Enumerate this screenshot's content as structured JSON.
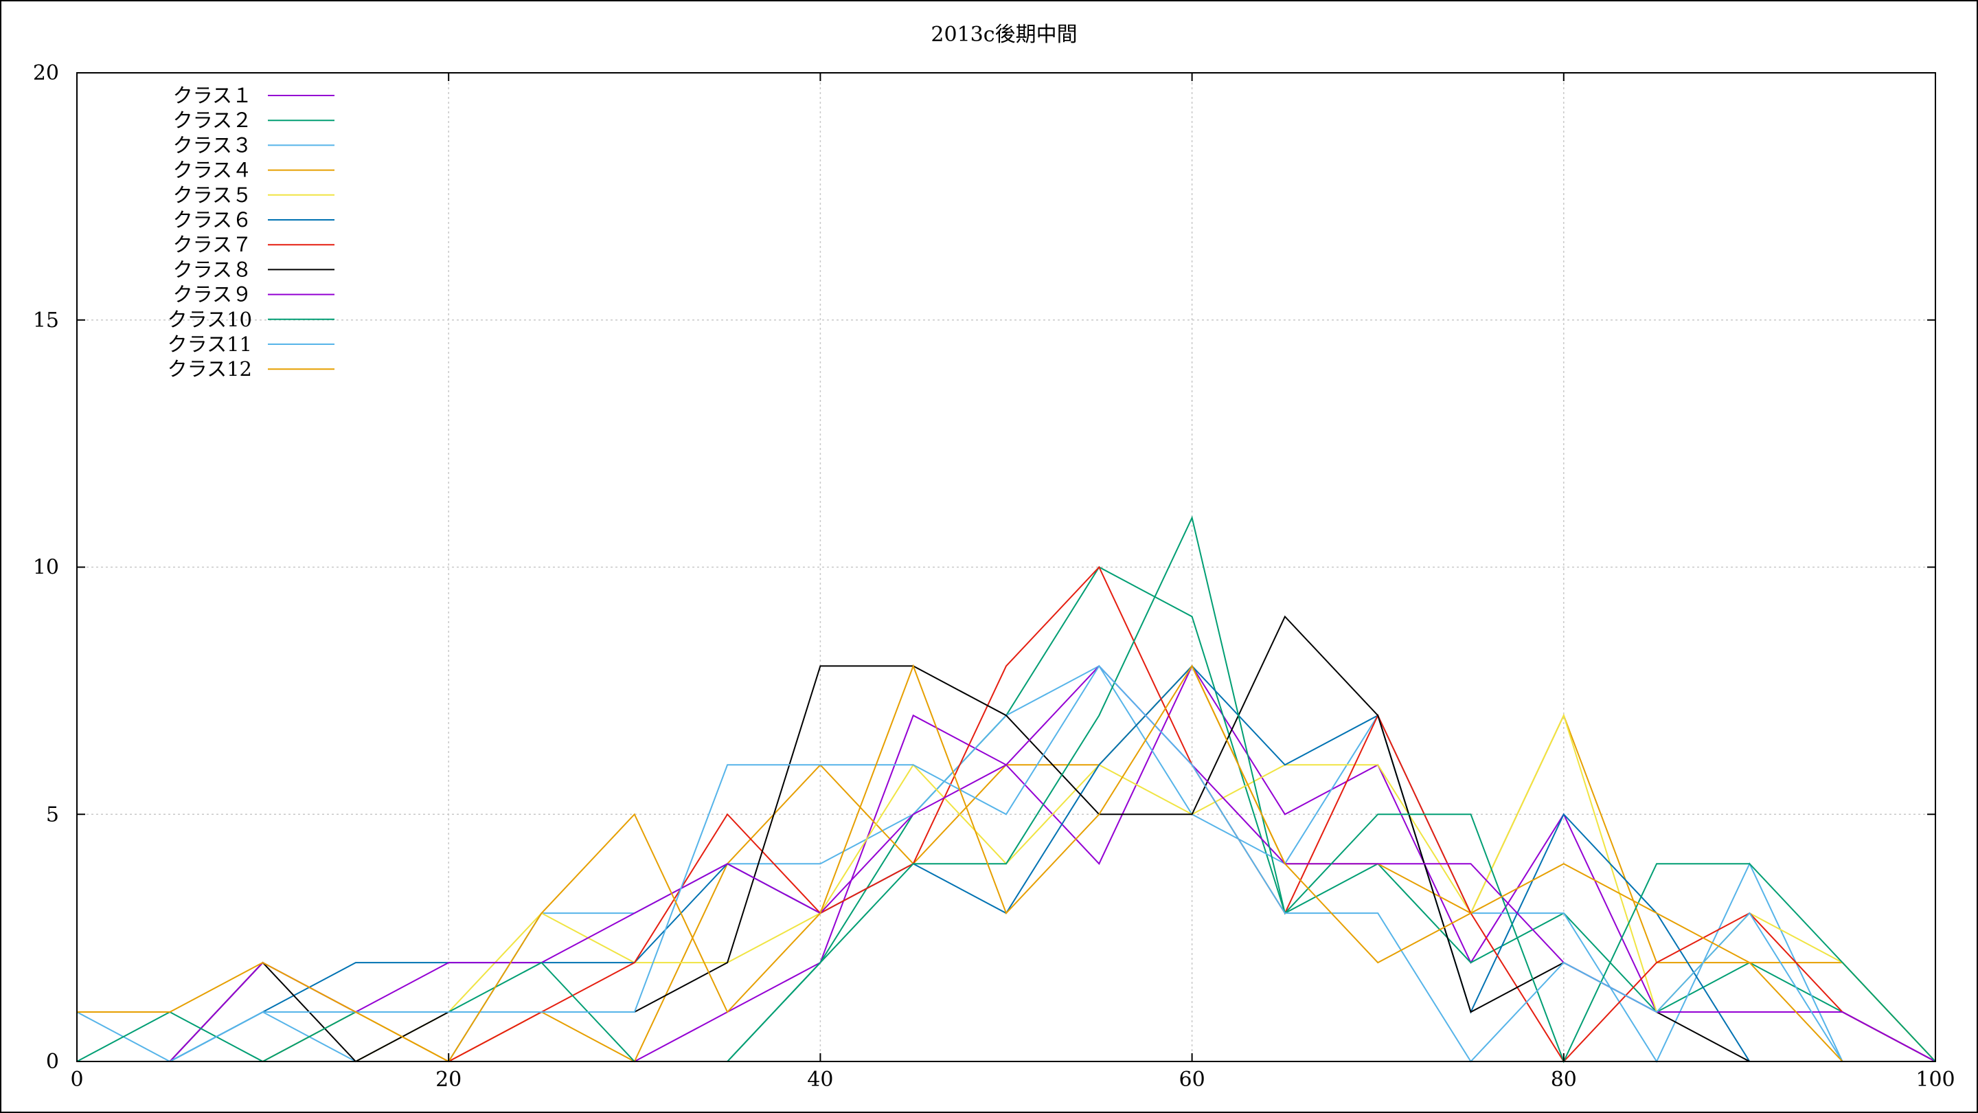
{
  "chart_data": {
    "type": "line",
    "title": "2013c後期中間",
    "xlabel": "",
    "ylabel": "",
    "xlim": [
      0,
      100
    ],
    "ylim": [
      0,
      20
    ],
    "xticks": [
      0,
      20,
      40,
      60,
      80,
      100
    ],
    "yticks": [
      0,
      5,
      10,
      15,
      20
    ],
    "grid": true,
    "legend_position": "top-left",
    "x": [
      0,
      5,
      10,
      15,
      20,
      25,
      30,
      35,
      40,
      45,
      50,
      55,
      60,
      65,
      70,
      75,
      80,
      85,
      90,
      95,
      100
    ],
    "series": [
      {
        "name": "クラス１",
        "color": "#9400d3",
        "values": [
          0,
          0,
          0,
          0,
          0,
          0,
          0,
          1,
          2,
          7,
          6,
          4,
          8,
          5,
          6,
          2,
          5,
          1,
          1,
          1,
          0
        ]
      },
      {
        "name": "クラス２",
        "color": "#009e73",
        "values": [
          0,
          0,
          0,
          0,
          0,
          0,
          0,
          0,
          2,
          5,
          7,
          10,
          9,
          3,
          4,
          2,
          3,
          1,
          2,
          1,
          0
        ]
      },
      {
        "name": "クラス３",
        "color": "#56b4e9",
        "values": [
          1,
          0,
          1,
          0,
          0,
          3,
          3,
          4,
          4,
          5,
          7,
          8,
          5,
          4,
          7,
          3,
          3,
          0,
          4,
          0,
          0
        ]
      },
      {
        "name": "クラス４",
        "color": "#e69f00",
        "values": [
          0,
          0,
          0,
          1,
          0,
          1,
          0,
          4,
          6,
          4,
          6,
          6,
          8,
          4,
          4,
          3,
          7,
          2,
          2,
          2,
          0
        ]
      },
      {
        "name": "クラス５",
        "color": "#f0e442",
        "values": [
          0,
          0,
          0,
          0,
          1,
          3,
          2,
          2,
          3,
          6,
          4,
          6,
          5,
          6,
          6,
          3,
          7,
          1,
          3,
          2,
          0
        ]
      },
      {
        "name": "クラス６",
        "color": "#0072b2",
        "values": [
          0,
          0,
          1,
          2,
          2,
          2,
          2,
          4,
          3,
          4,
          3,
          6,
          8,
          6,
          7,
          1,
          5,
          3,
          0,
          0,
          0
        ]
      },
      {
        "name": "クラス７",
        "color": "#e51e10",
        "values": [
          0,
          0,
          0,
          0,
          0,
          1,
          2,
          5,
          3,
          4,
          8,
          10,
          6,
          3,
          7,
          3,
          0,
          2,
          3,
          1,
          0
        ]
      },
      {
        "name": "クラス８",
        "color": "#000000",
        "values": [
          0,
          0,
          2,
          0,
          1,
          1,
          1,
          2,
          8,
          8,
          7,
          5,
          5,
          9,
          7,
          1,
          2,
          1,
          0,
          0,
          0
        ]
      },
      {
        "name": "クラス９",
        "color": "#9400d3",
        "values": [
          0,
          0,
          2,
          1,
          2,
          2,
          3,
          4,
          3,
          5,
          6,
          8,
          6,
          4,
          4,
          4,
          2,
          1,
          1,
          1,
          0
        ]
      },
      {
        "name": "クラス10",
        "color": "#009e73",
        "values": [
          0,
          1,
          0,
          1,
          1,
          2,
          0,
          0,
          2,
          4,
          4,
          7,
          11,
          3,
          5,
          5,
          0,
          4,
          4,
          2,
          0
        ]
      },
      {
        "name": "クラス11",
        "color": "#56b4e9",
        "values": [
          0,
          0,
          1,
          1,
          1,
          1,
          1,
          6,
          6,
          6,
          5,
          8,
          6,
          3,
          3,
          0,
          2,
          1,
          3,
          0,
          0
        ]
      },
      {
        "name": "クラス12",
        "color": "#e69f00",
        "values": [
          1,
          1,
          2,
          1,
          0,
          3,
          5,
          1,
          3,
          8,
          3,
          5,
          8,
          4,
          2,
          3,
          4,
          3,
          2,
          0,
          0
        ]
      }
    ]
  }
}
